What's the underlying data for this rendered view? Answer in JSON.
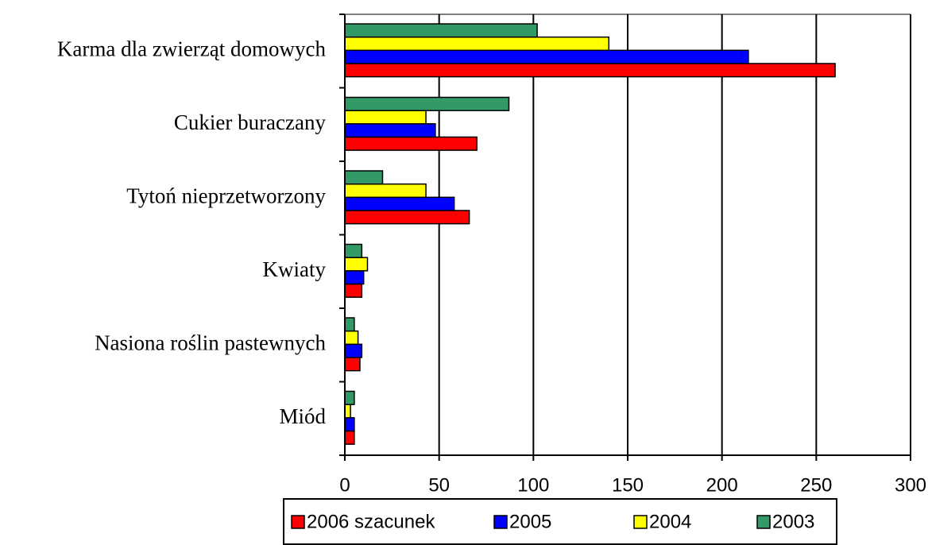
{
  "chart_data": {
    "type": "bar",
    "orientation": "horizontal",
    "categories": [
      "Karma dla zwierząt domowych",
      "Cukier buraczany",
      "Tytoń nieprzetworzony",
      "Kwiaty",
      "Nasiona roślin pastewnych",
      "Miód"
    ],
    "series": [
      {
        "name": "2006 szacunek",
        "color": "#ff0000",
        "values": [
          260,
          70,
          66,
          9,
          8,
          5
        ]
      },
      {
        "name": "2005",
        "color": "#0000ff",
        "values": [
          214,
          48,
          58,
          10,
          9,
          5
        ]
      },
      {
        "name": "2004",
        "color": "#ffff00",
        "values": [
          140,
          43,
          43,
          12,
          7,
          3
        ]
      },
      {
        "name": "2003",
        "color": "#339966",
        "values": [
          102,
          87,
          20,
          9,
          5,
          5
        ]
      }
    ],
    "xlim": [
      0,
      300
    ],
    "xticks": [
      0,
      50,
      100,
      150,
      200,
      250,
      300
    ],
    "grid": true,
    "legend": "bottom"
  }
}
